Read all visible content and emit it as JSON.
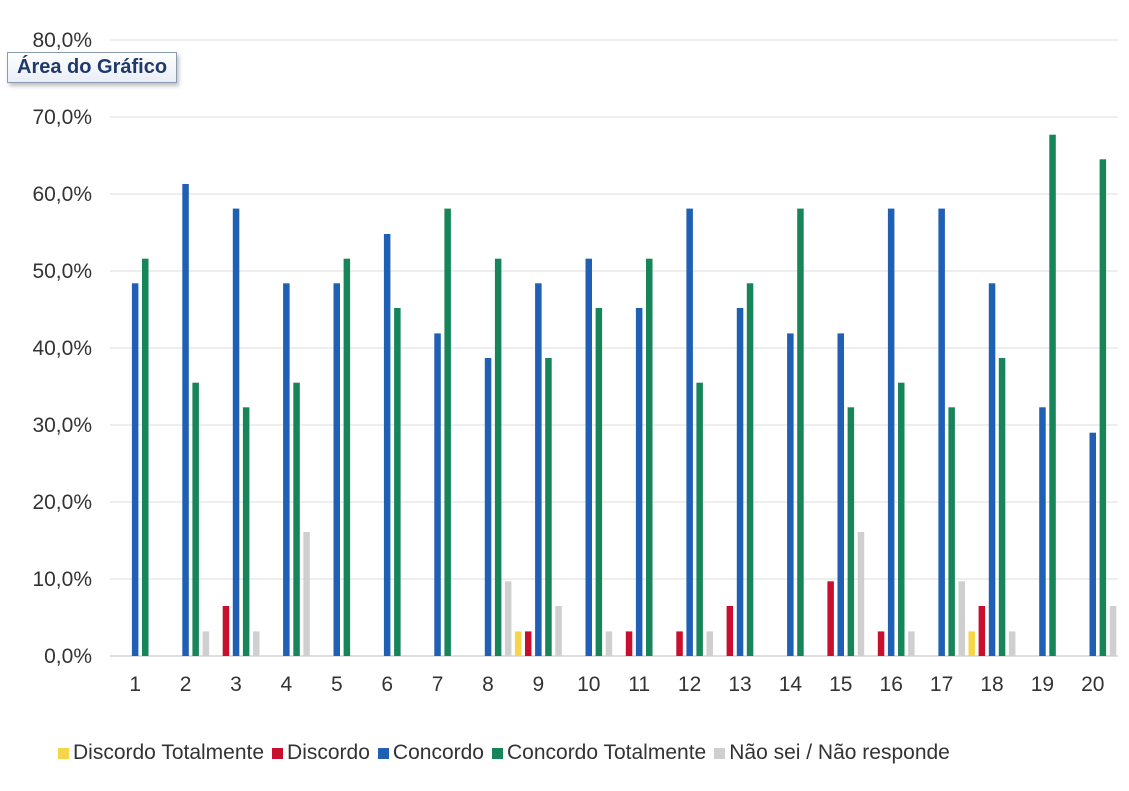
{
  "tooltip": "Área do Gráfico",
  "chart_data": {
    "type": "bar",
    "categories": [
      "1",
      "2",
      "3",
      "4",
      "5",
      "6",
      "7",
      "8",
      "9",
      "10",
      "11",
      "12",
      "13",
      "14",
      "15",
      "16",
      "17",
      "18",
      "19",
      "20"
    ],
    "ylim": [
      0,
      80
    ],
    "yticks": [
      "0,0%",
      "10,0%",
      "20,0%",
      "30,0%",
      "40,0%",
      "50,0%",
      "60,0%",
      "70,0%",
      "80,0%"
    ],
    "grid": true,
    "legend_position": "bottom",
    "series": [
      {
        "name": "Discordo Totalmente",
        "color": "#f5d54a",
        "values": [
          0,
          0,
          0,
          0,
          0,
          0,
          0,
          0,
          3.2,
          0,
          0,
          0,
          0,
          0,
          0,
          0,
          0,
          3.2,
          0,
          0
        ]
      },
      {
        "name": "Discordo",
        "color": "#c8102e",
        "values": [
          0,
          0,
          6.5,
          0,
          0,
          0,
          0,
          0,
          3.2,
          0,
          3.2,
          3.2,
          6.5,
          0,
          9.7,
          3.2,
          0,
          6.5,
          0,
          0
        ]
      },
      {
        "name": "Concordo",
        "color": "#1f5fb4",
        "values": [
          48.4,
          61.3,
          58.1,
          48.4,
          48.4,
          54.8,
          41.9,
          38.7,
          48.4,
          51.6,
          45.2,
          58.1,
          45.2,
          41.9,
          41.9,
          58.1,
          58.1,
          48.4,
          32.3,
          29.0
        ]
      },
      {
        "name": "Concordo Totalmente",
        "color": "#17855a",
        "values": [
          51.6,
          35.5,
          32.3,
          35.5,
          51.6,
          45.2,
          58.1,
          51.6,
          38.7,
          45.2,
          51.6,
          35.5,
          48.4,
          58.1,
          32.3,
          35.5,
          32.3,
          38.7,
          67.7,
          64.5
        ]
      },
      {
        "name": "Não sei / Não responde",
        "color": "#cfcfcf",
        "values": [
          0,
          3.2,
          3.2,
          16.1,
          0,
          0,
          0,
          9.7,
          6.5,
          3.2,
          0,
          3.2,
          0,
          0,
          16.1,
          3.2,
          9.7,
          3.2,
          0,
          6.5
        ]
      }
    ]
  }
}
